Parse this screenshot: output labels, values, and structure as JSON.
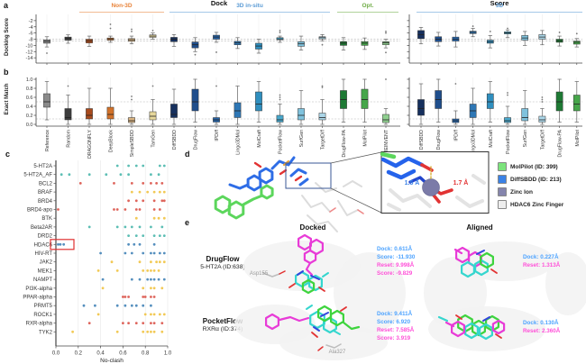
{
  "page": {
    "background": "#ffffff"
  },
  "panel_labels": {
    "a": "a",
    "b": "b",
    "c": "c",
    "d": "d",
    "e": "e"
  },
  "group_headers": [
    {
      "label": "Non-3D",
      "color": "#e8833a"
    },
    {
      "label": "3D in-situ",
      "color": "#5b9bd5"
    },
    {
      "label": "Opt.",
      "color": "#70ad47"
    },
    {
      "label": "3D",
      "color": "#5b9bd5"
    }
  ],
  "chart_data": [
    {
      "id": "dock-left",
      "type": "box",
      "title": "Dock",
      "ylabel": "Docking Score",
      "ylim": [
        -15.7,
        0
      ],
      "yticks": [
        -2,
        -4,
        -6,
        -8,
        -10,
        -12,
        -14
      ],
      "ref_lines": [
        -8.0,
        -8.6
      ],
      "categories": [
        "Reference",
        "Random",
        "DRAGONFLY",
        "DeepBlock",
        "SimpleSBDD",
        "TamGen",
        "DiffSBDD",
        "DrugFlow",
        "IPDiff",
        "Lingo3DMol",
        "MolCraft",
        "PocketFlow",
        "SurfGen",
        "TargetDiff",
        "DrugFlow-PA",
        "MolPilot",
        "REINVENT"
      ],
      "colors": [
        "#8a8a8a",
        "#3d3d3d",
        "#a84a1c",
        "#d2722a",
        "#d9b380",
        "#e6d79b",
        "#16305e",
        "#1f4e8c",
        "#2563a8",
        "#2e77b5",
        "#2f8fbf",
        "#49a8cc",
        "#7fc2dd",
        "#abd6e8",
        "#1e7a34",
        "#46a64a",
        "#8fd08f"
      ],
      "boxes": [
        [
          -10.5,
          -9.3,
          -8.7,
          -8.2,
          -7.2
        ],
        [
          -9.3,
          -8.3,
          -7.8,
          -7.3,
          -6.6
        ],
        [
          -10.3,
          -9.2,
          -8.5,
          -8.0,
          -7.0
        ],
        [
          -9.0,
          -8.3,
          -7.9,
          -7.6,
          -7.0
        ],
        [
          -9.5,
          -8.7,
          -8.2,
          -7.8,
          -7.0
        ],
        [
          -8.0,
          -7.4,
          -7.0,
          -6.6,
          -6.0
        ],
        [
          -10.3,
          -8.8,
          -8.0,
          -7.4,
          -6.5
        ],
        [
          -12.0,
          -10.8,
          -9.8,
          -8.9,
          -7.5
        ],
        [
          -9.0,
          -8.0,
          -7.3,
          -6.7,
          -5.8
        ],
        [
          -11.0,
          -9.8,
          -9.2,
          -8.7,
          -7.5
        ],
        [
          -12.5,
          -11.2,
          -10.2,
          -9.3,
          -8.0
        ],
        [
          -9.0,
          -8.2,
          -7.9,
          -7.5,
          -7.0
        ],
        [
          -11.5,
          -10.3,
          -9.5,
          -8.8,
          -7.0
        ],
        [
          -8.5,
          -7.9,
          -7.5,
          -7.2,
          -6.5
        ],
        [
          -11.5,
          -10.0,
          -9.3,
          -8.8,
          -7.5
        ],
        [
          -11.3,
          -10.0,
          -9.3,
          -8.8,
          -7.6
        ],
        [
          -10.8,
          -9.8,
          -9.2,
          -8.8,
          -8.0
        ]
      ],
      "outliers": [
        [
          -12.5
        ],
        [],
        [],
        [
          -4.5,
          -3.2
        ],
        [
          -5.5,
          -4.8
        ],
        [
          -5.2
        ],
        [],
        [
          -13.0
        ],
        [
          -12.2
        ],
        [],
        [],
        [
          -5.8,
          -5.2
        ],
        [],
        [
          -9.8
        ],
        [],
        [],
        [
          -6.0,
          -5.5,
          -12.3
        ]
      ]
    },
    {
      "id": "score-right",
      "type": "box",
      "title": "Score",
      "ylabel": "",
      "ylim": [
        -15.7,
        0
      ],
      "yticks": [
        -2,
        -4,
        -6,
        -8,
        -10,
        -12,
        -14
      ],
      "ref_lines": [
        -8.0,
        -8.6
      ],
      "categories": [
        "DiffSBDD",
        "DrugFlow",
        "IPDiff",
        "Lingo3DMol",
        "MolCraft",
        "PocketFlow",
        "SurfGen",
        "TargetDiff",
        "DrugFlow-PA",
        "MolPilot"
      ],
      "colors": [
        "#16305e",
        "#1f4e8c",
        "#2563a8",
        "#2e77b5",
        "#2f8fbf",
        "#49a8cc",
        "#7fc2dd",
        "#abd6e8",
        "#1e7a34",
        "#46a64a"
      ],
      "boxes": [
        [
          -9.5,
          -7.8,
          -6.5,
          -5.2,
          -4.2
        ],
        [
          -10.2,
          -8.8,
          -8.0,
          -7.2,
          -5.8
        ],
        [
          -10.5,
          -8.6,
          -8.0,
          -7.3,
          -5.5
        ],
        [
          -7.2,
          -6.2,
          -5.8,
          -5.4,
          -4.5
        ],
        [
          -10.8,
          -9.3,
          -8.8,
          -8.3,
          -6.8
        ],
        [
          -7.5,
          -6.3,
          -6.0,
          -5.6,
          -5.0
        ],
        [
          -10.0,
          -8.3,
          -7.6,
          -6.8,
          -5.5
        ],
        [
          -9.8,
          -8.0,
          -7.3,
          -6.5,
          -5.2
        ],
        [
          -10.2,
          -9.0,
          -8.5,
          -8.0,
          -7.0
        ],
        [
          -10.5,
          -9.6,
          -9.0,
          -8.6,
          -7.8
        ]
      ],
      "outliers": [
        [],
        [],
        [],
        [
          -3.8
        ],
        [
          -5.5
        ],
        [
          -4.5
        ],
        [],
        [],
        [
          -5.8
        ],
        [
          -6.2
        ]
      ]
    },
    {
      "id": "exact-left",
      "type": "box",
      "title": "",
      "ylabel": "Exact Match",
      "ylim": [
        0,
        1.0
      ],
      "yticks": [
        0.0,
        0.2,
        0.4,
        0.6,
        0.8,
        1.0
      ],
      "ref_lines": [
        0.5,
        0.12
      ],
      "categories": [
        "Reference",
        "Random",
        "DRAGONFLY",
        "DeepBlock",
        "SimpleSBDD",
        "TamGen",
        "DiffSBDD",
        "DrugFlow",
        "IPDiff",
        "Lingo3DMol",
        "MolCraft",
        "PocketFlow",
        "SurfGen",
        "TargetDiff",
        "DrugFlow-PA",
        "MolPilot",
        "REINVENT"
      ],
      "colors": [
        "#8a8a8a",
        "#3d3d3d",
        "#a84a1c",
        "#d2722a",
        "#d9b380",
        "#e6d79b",
        "#16305e",
        "#1f4e8c",
        "#2563a8",
        "#2e77b5",
        "#2f8fbf",
        "#49a8cc",
        "#7fc2dd",
        "#abd6e8",
        "#1e7a34",
        "#46a64a",
        "#8fd08f"
      ],
      "boxes": [
        [
          0.1,
          0.38,
          0.5,
          0.68,
          0.95
        ],
        [
          0.0,
          0.1,
          0.15,
          0.35,
          0.65
        ],
        [
          0.0,
          0.12,
          0.2,
          0.35,
          0.8
        ],
        [
          0.0,
          0.12,
          0.22,
          0.38,
          0.8
        ],
        [
          0.0,
          0.04,
          0.08,
          0.15,
          0.3
        ],
        [
          0.0,
          0.1,
          0.18,
          0.28,
          0.55
        ],
        [
          0.0,
          0.15,
          0.22,
          0.45,
          0.78
        ],
        [
          0.05,
          0.3,
          0.5,
          0.78,
          1.0
        ],
        [
          0.0,
          0.05,
          0.1,
          0.15,
          0.3
        ],
        [
          0.0,
          0.15,
          0.3,
          0.48,
          0.85
        ],
        [
          0.05,
          0.3,
          0.45,
          0.72,
          0.95
        ],
        [
          0.0,
          0.05,
          0.1,
          0.2,
          0.45
        ],
        [
          0.0,
          0.1,
          0.2,
          0.35,
          0.75
        ],
        [
          0.0,
          0.1,
          0.15,
          0.25,
          0.55
        ],
        [
          0.05,
          0.35,
          0.55,
          0.75,
          1.0
        ],
        [
          0.05,
          0.35,
          0.55,
          0.78,
          1.0
        ],
        [
          0.0,
          0.04,
          0.1,
          0.22,
          0.35
        ]
      ],
      "outliers": [
        [],
        [
          0.85
        ],
        [],
        [],
        [
          0.55,
          0.62
        ],
        [
          0.85
        ],
        [],
        [],
        [
          0.85
        ],
        [],
        [],
        [
          0.55,
          0.6,
          0.65
        ],
        [],
        [
          0.82,
          0.85
        ],
        [],
        [],
        [
          1.0
        ]
      ]
    },
    {
      "id": "exact-right",
      "type": "box",
      "title": "",
      "ylabel": "",
      "ylim": [
        0,
        1.0
      ],
      "yticks": [
        0.0,
        0.2,
        0.4,
        0.6,
        0.8,
        1.0
      ],
      "ref_lines": [
        0.5,
        0.12
      ],
      "categories": [
        "DiffSBDD",
        "DrugFlow",
        "IPDiff",
        "Lingo3DMol",
        "MolCraft",
        "PocketFlow",
        "SurfGen",
        "TargetDiff",
        "DrugFlow-PA",
        "MolPilot"
      ],
      "colors": [
        "#16305e",
        "#1f4e8c",
        "#2563a8",
        "#2e77b5",
        "#2f8fbf",
        "#49a8cc",
        "#7fc2dd",
        "#abd6e8",
        "#1e7a34",
        "#46a64a"
      ],
      "boxes": [
        [
          0.0,
          0.2,
          0.35,
          0.55,
          0.9
        ],
        [
          0.05,
          0.35,
          0.55,
          0.75,
          1.0
        ],
        [
          0.0,
          0.04,
          0.08,
          0.12,
          0.3
        ],
        [
          0.0,
          0.15,
          0.3,
          0.45,
          0.8
        ],
        [
          0.05,
          0.35,
          0.5,
          0.68,
          0.95
        ],
        [
          0.0,
          0.04,
          0.08,
          0.15,
          0.4
        ],
        [
          0.0,
          0.08,
          0.15,
          0.35,
          0.75
        ],
        [
          0.0,
          0.05,
          0.1,
          0.18,
          0.35
        ],
        [
          0.05,
          0.3,
          0.5,
          0.72,
          1.0
        ],
        [
          0.05,
          0.3,
          0.45,
          0.65,
          0.95
        ]
      ],
      "outliers": [
        [],
        [],
        [
          0.9
        ],
        [],
        [],
        [
          0.65,
          0.7
        ],
        [],
        [
          0.5,
          0.55,
          0.6
        ],
        [],
        []
      ]
    },
    {
      "id": "noclash",
      "type": "scatter",
      "xlabel": "No-clash",
      "xlim": [
        0,
        1
      ],
      "xticks": [
        0.0,
        0.2,
        0.4,
        0.6,
        0.8,
        1.0
      ],
      "highlight": {
        "row": "HDAC6",
        "color": "#e03131"
      },
      "rows": [
        {
          "label": "5-HT2A",
          "color": "#45b5aa",
          "values": [
            0.55,
            0.65,
            0.72,
            0.78,
            0.93,
            0.97
          ]
        },
        {
          "label": "5-HT2A_AF",
          "color": "#45b5aa",
          "values": [
            0.05,
            0.12,
            0.3,
            0.45,
            0.58,
            0.65,
            0.85,
            0.92
          ]
        },
        {
          "label": "BCL2",
          "color": "#d94f44",
          "values": [
            0.22,
            0.52,
            0.68,
            0.78,
            0.85,
            0.9,
            0.95
          ]
        },
        {
          "label": "BRAF",
          "color": "#f0c23e",
          "values": [
            0.68,
            0.75,
            0.82,
            0.88,
            0.93,
            0.97
          ]
        },
        {
          "label": "BRD4",
          "color": "#d94f44",
          "values": [
            0.65,
            0.72,
            0.78,
            0.88,
            0.95,
            0.97
          ]
        },
        {
          "label": "BRD4-apo",
          "color": "#d94f44",
          "values": [
            0.02,
            0.52,
            0.55,
            0.62,
            0.72,
            0.75,
            0.88,
            0.93
          ]
        },
        {
          "label": "BTK",
          "color": "#f0c23e",
          "values": [
            0.72,
            0.88,
            0.92,
            0.97
          ]
        },
        {
          "label": "Beta2AR",
          "color": "#45b5aa",
          "values": [
            0.3,
            0.55,
            0.62,
            0.68,
            0.75,
            0.85,
            0.95
          ]
        },
        {
          "label": "DRD2",
          "color": "#45b5aa",
          "values": [
            0.65,
            0.72,
            0.78,
            0.88,
            0.93,
            0.97
          ]
        },
        {
          "label": "HDAC6",
          "color": "#3d7fb5",
          "values": [
            0.02,
            0.04,
            0.07,
            0.65,
            0.7,
            0.75,
            0.88
          ]
        },
        {
          "label": "HIV-RT",
          "color": "#3d7fb5",
          "values": [
            0.4,
            0.62,
            0.68,
            0.78,
            0.85,
            0.88,
            0.93,
            0.97
          ]
        },
        {
          "label": "JAK2",
          "color": "#f0c23e",
          "values": [
            0.5,
            0.75,
            0.85,
            0.9,
            0.93,
            0.97
          ]
        },
        {
          "label": "MEK1",
          "color": "#f0c23e",
          "values": [
            0.38,
            0.55,
            0.78,
            0.82,
            0.85,
            0.88,
            0.92
          ]
        },
        {
          "label": "NAMPT",
          "color": "#3d7fb5",
          "values": [
            0.42,
            0.68,
            0.75,
            0.82,
            0.85,
            0.88,
            0.92,
            0.97
          ]
        },
        {
          "label": "PI3K-alpha",
          "color": "#f0c23e",
          "values": [
            0.42,
            0.78,
            0.85,
            0.88,
            0.95
          ]
        },
        {
          "label": "PPAR-alpha",
          "color": "#d94f44",
          "values": [
            0.6,
            0.62,
            0.65,
            0.78,
            0.8,
            0.85,
            0.88
          ]
        },
        {
          "label": "PRMT5",
          "color": "#3d7fb5",
          "values": [
            0.25,
            0.35,
            0.55,
            0.62,
            0.68,
            0.72,
            0.78,
            0.85
          ]
        },
        {
          "label": "ROCK1",
          "color": "#f0c23e",
          "values": [
            0.38,
            0.8,
            0.85,
            0.88,
            0.93,
            0.97
          ]
        },
        {
          "label": "RXR-alpha",
          "color": "#d94f44",
          "values": [
            0.3,
            0.6,
            0.65,
            0.72,
            0.78,
            0.85,
            0.88,
            0.95
          ]
        },
        {
          "label": "TYK2",
          "color": "#f0c23e",
          "values": [
            0.15,
            0.55,
            0.78,
            0.82,
            0.85,
            0.88,
            0.95
          ]
        }
      ]
    }
  ],
  "panel_d": {
    "legend": [
      {
        "label": "MolPilot (ID: 399)",
        "color": "#7ce47c"
      },
      {
        "label": "DiffSBDD (ID: 213)",
        "color": "#3b82e6"
      },
      {
        "label": "Zinc Ion",
        "color": "#8585ad"
      },
      {
        "label": "HDAC6 Zinc Finger",
        "color": "#ededed"
      }
    ],
    "distance_blue": "1.5 Å",
    "distance_red": "1.7 Å"
  },
  "panel_e": {
    "col_headers": [
      "Docked",
      "Aligned"
    ],
    "metric_colors": {
      "dock": "#4da3ff",
      "reset": "#ff4fd8"
    },
    "rows": [
      {
        "method": "DrugFlow",
        "target": "5-HT2A (ID:638)",
        "residue": "Asp155",
        "docked": [
          {
            "text": "Dock: 0.611Å",
            "color": "dock"
          },
          {
            "text": "Score: -11.930",
            "color": "dock"
          },
          {
            "text": "Reset: 9.998Å",
            "color": "reset"
          },
          {
            "text": "Score: -9.829",
            "color": "reset"
          }
        ],
        "aligned": [
          {
            "text": "Dock: 0.227Å",
            "color": "dock"
          },
          {
            "text": "Reset: 1.313Å",
            "color": "reset"
          }
        ]
      },
      {
        "method": "PocketFlow",
        "target": "RXRα (ID:374)",
        "residue": "Ala327",
        "docked": [
          {
            "text": "Dock: 9.411Å",
            "color": "dock"
          },
          {
            "text": "Score: 6.920",
            "color": "dock"
          },
          {
            "text": "Reset: 7.585Å",
            "color": "reset"
          },
          {
            "text": "Score: 3.919",
            "color": "reset"
          }
        ],
        "aligned": [
          {
            "text": "Dock: 0.130Å",
            "color": "dock"
          },
          {
            "text": "Reset: 2.360Å",
            "color": "reset"
          }
        ]
      }
    ]
  }
}
